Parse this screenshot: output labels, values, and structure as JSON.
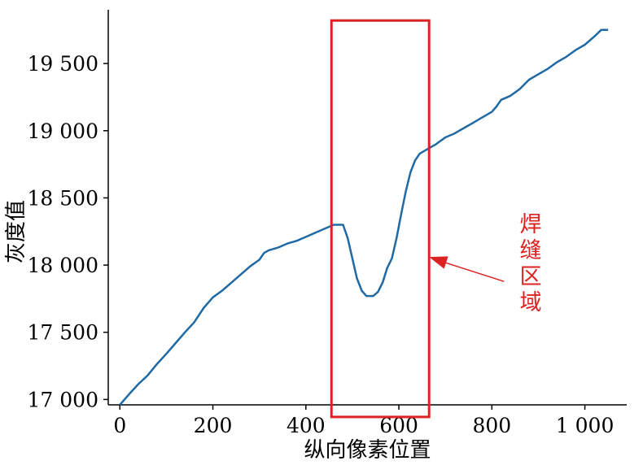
{
  "chart_data": {
    "type": "line",
    "title": "",
    "xlabel": "纵向像素位置",
    "ylabel": "灰度值",
    "xlim": [
      -25,
      1090
    ],
    "ylim": [
      16960,
      19900
    ],
    "x_ticks": [
      0,
      200,
      400,
      600,
      800,
      1000
    ],
    "x_tick_labels": [
      "0",
      "200",
      "400",
      "600",
      "800",
      "1 000"
    ],
    "y_ticks": [
      17000,
      17500,
      18000,
      18500,
      19000,
      19500
    ],
    "y_tick_labels": [
      "17 000",
      "17 500",
      "18 000",
      "18 500",
      "19 000",
      "19 500"
    ],
    "grid": false,
    "series": [
      {
        "color": "#1f6aa5",
        "points": [
          [
            0,
            16960
          ],
          [
            20,
            17040
          ],
          [
            40,
            17115
          ],
          [
            60,
            17180
          ],
          [
            80,
            17265
          ],
          [
            100,
            17340
          ],
          [
            120,
            17420
          ],
          [
            140,
            17500
          ],
          [
            160,
            17575
          ],
          [
            180,
            17680
          ],
          [
            200,
            17760
          ],
          [
            220,
            17810
          ],
          [
            240,
            17870
          ],
          [
            260,
            17930
          ],
          [
            280,
            17990
          ],
          [
            300,
            18040
          ],
          [
            310,
            18090
          ],
          [
            320,
            18110
          ],
          [
            340,
            18130
          ],
          [
            360,
            18160
          ],
          [
            380,
            18180
          ],
          [
            400,
            18210
          ],
          [
            420,
            18240
          ],
          [
            440,
            18270
          ],
          [
            460,
            18300
          ],
          [
            480,
            18300
          ],
          [
            490,
            18200
          ],
          [
            500,
            18050
          ],
          [
            510,
            17900
          ],
          [
            520,
            17810
          ],
          [
            530,
            17770
          ],
          [
            545,
            17770
          ],
          [
            555,
            17800
          ],
          [
            565,
            17870
          ],
          [
            575,
            17980
          ],
          [
            585,
            18050
          ],
          [
            595,
            18200
          ],
          [
            605,
            18380
          ],
          [
            615,
            18550
          ],
          [
            625,
            18690
          ],
          [
            635,
            18780
          ],
          [
            645,
            18830
          ],
          [
            660,
            18860
          ],
          [
            680,
            18900
          ],
          [
            700,
            18950
          ],
          [
            720,
            18980
          ],
          [
            740,
            19020
          ],
          [
            760,
            19060
          ],
          [
            780,
            19100
          ],
          [
            800,
            19140
          ],
          [
            810,
            19180
          ],
          [
            820,
            19230
          ],
          [
            840,
            19260
          ],
          [
            860,
            19310
          ],
          [
            880,
            19380
          ],
          [
            900,
            19420
          ],
          [
            920,
            19460
          ],
          [
            940,
            19510
          ],
          [
            960,
            19550
          ],
          [
            980,
            19600
          ],
          [
            1000,
            19640
          ],
          [
            1020,
            19700
          ],
          [
            1035,
            19750
          ],
          [
            1050,
            19750
          ]
        ]
      }
    ],
    "highlight_box": {
      "x": [
        455,
        665
      ],
      "y": [
        16870,
        19820
      ],
      "color": "#dd2222"
    },
    "annotation": {
      "text": [
        "焊",
        "缝",
        "区",
        "域"
      ],
      "color": "#dd2222",
      "arrow_target": [
        665,
        18060
      ]
    }
  }
}
